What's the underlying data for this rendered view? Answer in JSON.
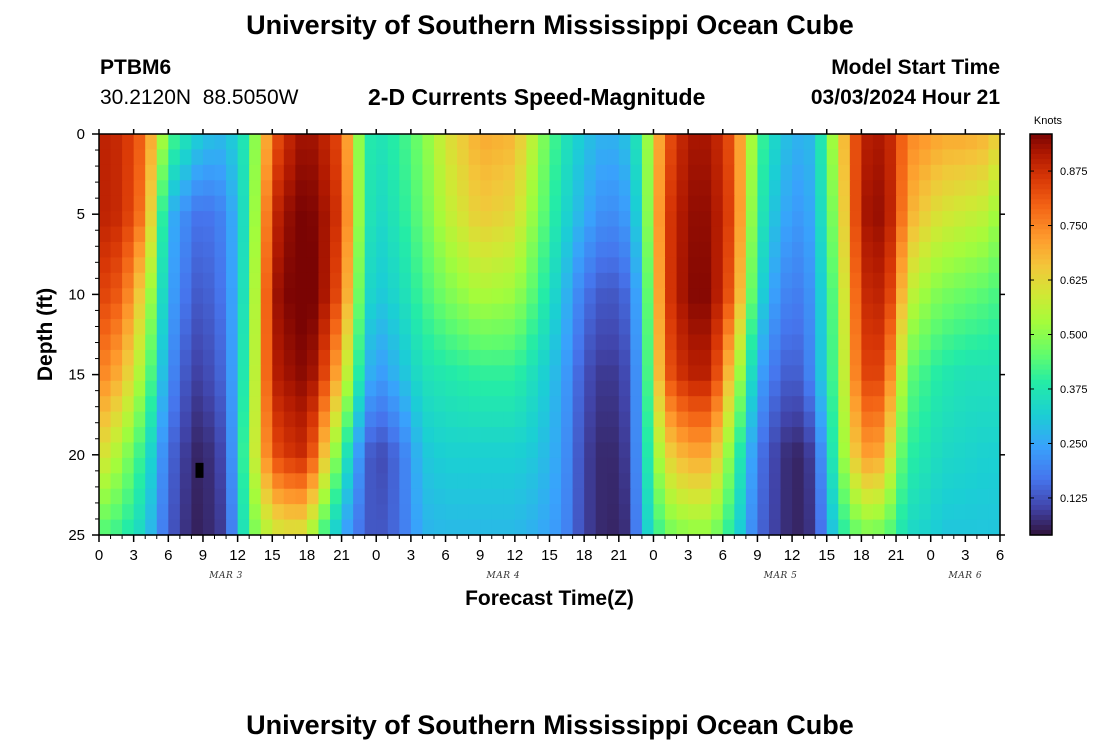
{
  "page": {
    "title_top": "University of Southern Mississippi Ocean Cube",
    "title_bottom": "University of Southern Mississippi Ocean Cube",
    "station_id": "PTBM6",
    "station_coords": "30.2120N  88.5050W",
    "product_title": "2-D Currents Speed-Magnitude",
    "model_start_label": "Model Start Time",
    "model_start_value": "03/03/2024 Hour 21"
  },
  "chart_data": {
    "type": "heatmap",
    "title": "2-D Currents Speed-Magnitude",
    "xlabel": "Forecast Time(Z)",
    "ylabel": "Depth (ft)",
    "colorbar_label": "Knots",
    "colorbar_ticks": [
      "0.875",
      "0.750",
      "0.625",
      "0.500",
      "0.375",
      "0.250",
      "0.125"
    ],
    "colorbar_values": [
      0.875,
      0.75,
      0.625,
      0.5,
      0.375,
      0.25,
      0.125
    ],
    "colorbar_range": [
      0.04,
      0.96
    ],
    "x_range_hours": [
      0,
      78
    ],
    "x_tick_values": [
      0,
      3,
      6,
      9,
      12,
      15,
      18,
      21,
      24,
      27,
      30,
      33,
      36,
      39,
      42,
      45,
      48,
      51,
      54,
      57,
      60,
      63,
      66,
      69,
      72,
      75,
      78
    ],
    "x_tick_labels": [
      "0",
      "3",
      "6",
      "9",
      "12",
      "15",
      "18",
      "21",
      "0",
      "3",
      "6",
      "9",
      "12",
      "15",
      "18",
      "21",
      "0",
      "3",
      "6",
      "9",
      "12",
      "15",
      "18",
      "21",
      "0",
      "3",
      "6"
    ],
    "date_labels": [
      {
        "label": "MAR 3",
        "hour": 11
      },
      {
        "label": "MAR 4",
        "hour": 35
      },
      {
        "label": "MAR 5",
        "hour": 59
      },
      {
        "label": "MAR 6",
        "hour": 75
      }
    ],
    "y_range_ft": [
      0,
      25
    ],
    "y_tick_values": [
      0,
      5,
      10,
      15,
      20,
      25
    ],
    "y_tick_labels": [
      "0",
      "5",
      "10",
      "15",
      "20",
      "25"
    ],
    "grid": false,
    "marker": {
      "hour": 8.7,
      "depth_ft": 21.0,
      "color": "#000000"
    },
    "speed_knots": {
      "depths_ft": [
        0,
        5,
        10,
        15,
        20,
        25
      ],
      "hours": [
        0,
        2,
        4,
        6,
        8,
        9,
        11,
        13,
        15,
        17,
        18,
        19,
        21,
        23,
        24,
        26,
        28,
        30,
        33,
        36,
        38,
        40,
        42,
        44,
        46,
        47,
        49,
        51,
        53,
        55,
        57,
        59,
        61,
        62,
        64,
        66,
        68,
        69,
        70,
        72,
        73,
        75,
        77,
        78
      ],
      "values": [
        [
          0.9,
          0.88,
          0.78,
          0.45,
          0.34,
          0.3,
          0.28,
          0.4,
          0.8,
          0.92,
          0.93,
          0.92,
          0.82,
          0.4,
          0.36,
          0.4,
          0.48,
          0.6,
          0.7,
          0.68,
          0.52,
          0.38,
          0.3,
          0.26,
          0.3,
          0.42,
          0.8,
          0.92,
          0.92,
          0.8,
          0.44,
          0.3,
          0.26,
          0.3,
          0.6,
          0.9,
          0.92,
          0.85,
          0.75,
          0.72,
          0.7,
          0.7,
          0.68,
          0.62
        ],
        [
          0.9,
          0.88,
          0.75,
          0.28,
          0.18,
          0.16,
          0.2,
          0.4,
          0.88,
          0.96,
          0.96,
          0.95,
          0.85,
          0.4,
          0.33,
          0.38,
          0.46,
          0.56,
          0.65,
          0.62,
          0.48,
          0.35,
          0.26,
          0.2,
          0.24,
          0.38,
          0.84,
          0.94,
          0.94,
          0.82,
          0.4,
          0.26,
          0.22,
          0.28,
          0.55,
          0.92,
          0.94,
          0.85,
          0.7,
          0.62,
          0.6,
          0.58,
          0.56,
          0.5
        ],
        [
          0.85,
          0.8,
          0.6,
          0.26,
          0.14,
          0.13,
          0.18,
          0.42,
          0.92,
          0.97,
          0.97,
          0.96,
          0.8,
          0.36,
          0.3,
          0.34,
          0.42,
          0.48,
          0.54,
          0.52,
          0.42,
          0.3,
          0.17,
          0.12,
          0.16,
          0.32,
          0.84,
          0.95,
          0.95,
          0.78,
          0.35,
          0.2,
          0.18,
          0.25,
          0.5,
          0.88,
          0.9,
          0.78,
          0.58,
          0.5,
          0.48,
          0.46,
          0.44,
          0.42
        ],
        [
          0.76,
          0.68,
          0.5,
          0.22,
          0.1,
          0.1,
          0.16,
          0.45,
          0.9,
          0.94,
          0.95,
          0.9,
          0.65,
          0.3,
          0.22,
          0.28,
          0.36,
          0.38,
          0.4,
          0.4,
          0.34,
          0.26,
          0.12,
          0.08,
          0.12,
          0.3,
          0.8,
          0.9,
          0.9,
          0.6,
          0.26,
          0.14,
          0.14,
          0.24,
          0.48,
          0.84,
          0.84,
          0.64,
          0.46,
          0.4,
          0.38,
          0.36,
          0.36,
          0.36
        ],
        [
          0.62,
          0.52,
          0.38,
          0.16,
          0.07,
          0.06,
          0.12,
          0.5,
          0.82,
          0.88,
          0.88,
          0.74,
          0.42,
          0.16,
          0.1,
          0.16,
          0.3,
          0.32,
          0.32,
          0.32,
          0.3,
          0.24,
          0.1,
          0.06,
          0.1,
          0.3,
          0.62,
          0.7,
          0.7,
          0.44,
          0.18,
          0.08,
          0.06,
          0.12,
          0.46,
          0.72,
          0.7,
          0.5,
          0.4,
          0.36,
          0.34,
          0.33,
          0.32,
          0.32
        ],
        [
          0.44,
          0.4,
          0.32,
          0.14,
          0.06,
          0.06,
          0.1,
          0.45,
          0.58,
          0.6,
          0.58,
          0.46,
          0.26,
          0.14,
          0.12,
          0.16,
          0.27,
          0.28,
          0.28,
          0.28,
          0.26,
          0.22,
          0.1,
          0.06,
          0.08,
          0.28,
          0.46,
          0.5,
          0.5,
          0.36,
          0.16,
          0.08,
          0.06,
          0.1,
          0.36,
          0.48,
          0.46,
          0.4,
          0.34,
          0.32,
          0.3,
          0.3,
          0.3,
          0.3
        ]
      ]
    }
  }
}
